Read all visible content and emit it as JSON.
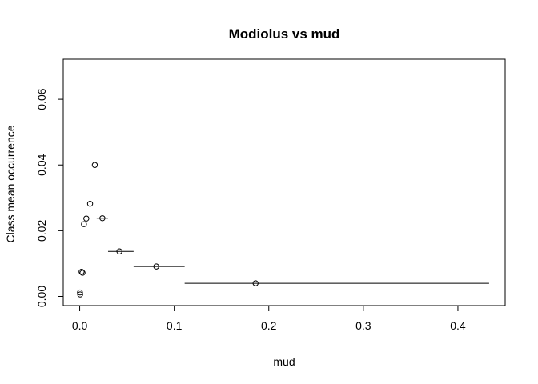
{
  "chart_data": {
    "type": "scatter",
    "title": "Modiolus vs mud",
    "xlabel": "mud",
    "ylabel": "Class mean occurrence",
    "xlim": [
      -0.0174,
      0.45
    ],
    "ylim": [
      -0.0028,
      0.0722
    ],
    "xticks": [
      0.0,
      0.1,
      0.2,
      0.3,
      0.4
    ],
    "xtick_labels": [
      "0.0",
      "0.1",
      "0.2",
      "0.3",
      "0.4"
    ],
    "yticks": [
      0.0,
      0.02,
      0.04,
      0.06
    ],
    "ytick_labels": [
      "0.00",
      "0.02",
      "0.04",
      "0.06"
    ],
    "grid": false,
    "legend": "none",
    "points": [
      {
        "x": 0.0003,
        "y": 0.0012
      },
      {
        "x": 0.0005,
        "y": 0.0006
      },
      {
        "x": 0.002,
        "y": 0.0075
      },
      {
        "x": 0.003,
        "y": 0.0072
      },
      {
        "x": 0.0045,
        "y": 0.022
      },
      {
        "x": 0.007,
        "y": 0.0237
      },
      {
        "x": 0.011,
        "y": 0.0282
      },
      {
        "x": 0.016,
        "y": 0.04
      },
      {
        "x": 0.024,
        "y": 0.0238,
        "xmin": 0.018,
        "xmax": 0.03
      },
      {
        "x": 0.042,
        "y": 0.0137,
        "xmin": 0.03,
        "xmax": 0.057
      },
      {
        "x": 0.081,
        "y": 0.0091,
        "xmin": 0.057,
        "xmax": 0.111
      },
      {
        "x": 0.186,
        "y": 0.004,
        "xmin": 0.111,
        "xmax": 0.433
      }
    ]
  }
}
